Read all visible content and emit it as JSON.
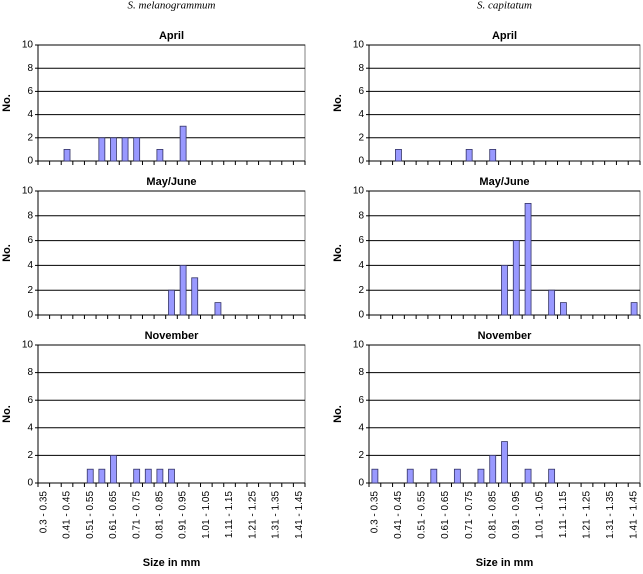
{
  "chart_data": [
    {
      "type": "bar",
      "species": "S. melanogrammum",
      "title": "April",
      "ylabel": "No.",
      "values": [
        0,
        0,
        1,
        0,
        0,
        2,
        2,
        2,
        2,
        0,
        1,
        0,
        3,
        0,
        0,
        0,
        0,
        0,
        0,
        0,
        0,
        0,
        0
      ],
      "color": "#9999ff",
      "ylim": [
        0,
        10
      ],
      "yticks": [
        0,
        2,
        4,
        6,
        8,
        10
      ],
      "grid": true
    },
    {
      "type": "bar",
      "title": "May/June",
      "ylabel": "No.",
      "values": [
        0,
        0,
        0,
        0,
        0,
        0,
        0,
        0,
        0,
        0,
        0,
        2,
        4,
        3,
        0,
        1,
        0,
        0,
        0,
        0,
        0,
        0,
        0
      ],
      "color": "#9999ff",
      "ylim": [
        0,
        10
      ],
      "yticks": [
        0,
        2,
        4,
        6,
        8,
        10
      ],
      "grid": true
    },
    {
      "type": "bar",
      "title": "November",
      "ylabel": "No.",
      "xlabel": "Size in mm",
      "categories": [
        "0.3 - 0.35",
        null,
        "0.41 - 0.45",
        null,
        "0.51 - 0.55",
        null,
        "0.61 - 0.65",
        null,
        "0.71 - 0.75",
        null,
        "0.81 - 0.85",
        null,
        "0.91 - 0.95",
        null,
        "1.01 - 1.05",
        null,
        "1.11 - 1.15",
        null,
        "1.21 - 1.25",
        null,
        "1.31 - 1.35",
        null,
        "1.41 - 1.45"
      ],
      "values": [
        0,
        0,
        0,
        0,
        1,
        1,
        2,
        0,
        1,
        1,
        1,
        1,
        0,
        0,
        0,
        0,
        0,
        0,
        0,
        0,
        0,
        0,
        0
      ],
      "color": "#9999ff",
      "ylim": [
        0,
        10
      ],
      "yticks": [
        0,
        2,
        4,
        6,
        8,
        10
      ],
      "grid": true
    },
    {
      "type": "bar",
      "species": "S. capitatum",
      "title": "April",
      "ylabel": "No.",
      "values": [
        0,
        0,
        1,
        0,
        0,
        0,
        0,
        0,
        1,
        0,
        1,
        0,
        0,
        0,
        0,
        0,
        0,
        0,
        0,
        0,
        0,
        0,
        0
      ],
      "color": "#9999ff",
      "ylim": [
        0,
        10
      ],
      "yticks": [
        0,
        2,
        4,
        6,
        8,
        10
      ],
      "grid": true
    },
    {
      "type": "bar",
      "title": "May/June",
      "ylabel": "No.",
      "values": [
        0,
        0,
        0,
        0,
        0,
        0,
        0,
        0,
        0,
        0,
        0,
        4,
        6,
        9,
        0,
        2,
        1,
        0,
        0,
        0,
        0,
        0,
        1
      ],
      "color": "#9999ff",
      "ylim": [
        0,
        10
      ],
      "yticks": [
        0,
        2,
        4,
        6,
        8,
        10
      ],
      "grid": true
    },
    {
      "type": "bar",
      "title": "November",
      "ylabel": "No.",
      "xlabel": "Size in mm",
      "categories": [
        "0.3 - 0.35",
        null,
        "0.41 - 0.45",
        null,
        "0.51 - 0.55",
        null,
        "0.61 - 0.65",
        null,
        "0.71 - 0.75",
        null,
        "0.81 - 0.85",
        null,
        "0.91 - 0.95",
        null,
        "1.01 - 1.05",
        null,
        "1.11 - 1.15",
        null,
        "1.21 - 1.25",
        null,
        "1.31 - 1.35",
        null,
        "1.41 - 1.45"
      ],
      "values": [
        1,
        0,
        0,
        1,
        0,
        1,
        0,
        1,
        0,
        1,
        2,
        3,
        0,
        1,
        0,
        1,
        0,
        0,
        0,
        0,
        0,
        0,
        0
      ],
      "color": "#9999ff",
      "ylim": [
        0,
        10
      ],
      "yticks": [
        0,
        2,
        4,
        6,
        8,
        10
      ],
      "grid": true
    }
  ]
}
